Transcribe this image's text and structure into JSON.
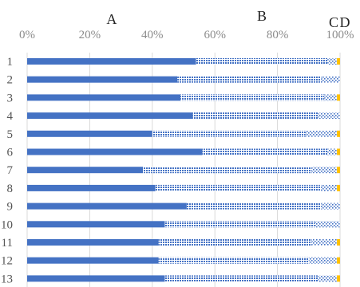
{
  "chart_data": {
    "type": "bar",
    "orientation": "horizontal",
    "stacked": "percent",
    "title": "",
    "xlabel": "",
    "ylabel": "",
    "xlim": [
      0,
      100
    ],
    "x_ticks": [
      "0%",
      "20%",
      "40%",
      "60%",
      "80%",
      "100%"
    ],
    "grid": true,
    "legend": "none",
    "categories": [
      "1",
      "2",
      "3",
      "4",
      "5",
      "6",
      "7",
      "8",
      "9",
      "10",
      "11",
      "12",
      "13"
    ],
    "series": [
      {
        "name": "A",
        "color": "#4472c4",
        "pattern": "solid",
        "values": [
          54,
          48,
          49,
          53,
          40,
          56,
          37,
          41,
          51,
          44,
          42,
          42,
          44
        ]
      },
      {
        "name": "B",
        "color": "#4472c4",
        "pattern": "dense-dots",
        "values": [
          42,
          46,
          46,
          40,
          49,
          40,
          54,
          53,
          43,
          48,
          49,
          48,
          49
        ]
      },
      {
        "name": "C",
        "color": "#4472c4",
        "pattern": "sparse-dots",
        "values": [
          3,
          6,
          4,
          7,
          10,
          3,
          8,
          5,
          6,
          8,
          8,
          9,
          6
        ]
      },
      {
        "name": "D",
        "color": "#ffc000",
        "pattern": "solid",
        "values": [
          1,
          0,
          1,
          0,
          1,
          1,
          1,
          1,
          0,
          0,
          1,
          1,
          1
        ]
      }
    ]
  }
}
